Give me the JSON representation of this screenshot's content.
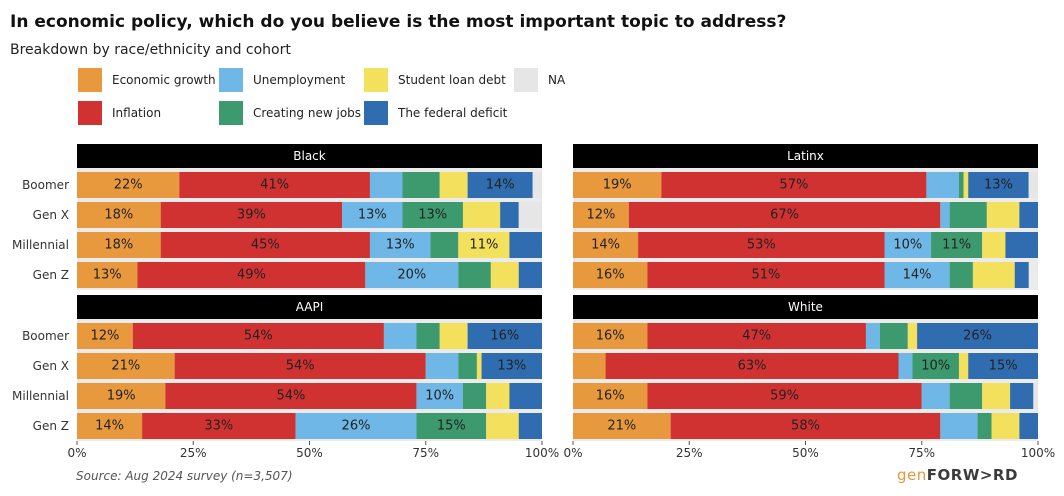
{
  "title": "In economic policy, which do you believe is the most important topic to address?",
  "subtitle": "Breakdown by race/ethnicity and cohort",
  "source": "Source: Aug 2024 survey (n=3,507)",
  "brand": {
    "prefix": "gen",
    "main": "FORW>RD"
  },
  "legend": [
    {
      "key": "econ_growth",
      "label": "Economic growth",
      "color": "#e8993e"
    },
    {
      "key": "unemployment",
      "label": "Unemployment",
      "color": "#6fb7e6"
    },
    {
      "key": "student_loan",
      "label": "Student loan debt",
      "color": "#f3e05c"
    },
    {
      "key": "na",
      "label": "NA",
      "color": "#e6e6e6"
    },
    {
      "key": "inflation",
      "label": "Inflation",
      "color": "#d03232"
    },
    {
      "key": "new_jobs",
      "label": "Creating new jobs",
      "color": "#3d9a6e"
    },
    {
      "key": "deficit",
      "label": "The federal deficit",
      "color": "#2f6db0"
    }
  ],
  "chart_data": {
    "type": "bar",
    "orientation": "horizontal",
    "stacked": true,
    "xlim": [
      0,
      100
    ],
    "x_ticks": [
      "0%",
      "25%",
      "50%",
      "75%",
      "100%"
    ],
    "categories": [
      "Boomer",
      "Gen X",
      "Millennial",
      "Gen Z"
    ],
    "segment_order": [
      "econ_growth",
      "inflation",
      "unemployment",
      "new_jobs",
      "student_loan",
      "deficit",
      "na"
    ],
    "panels": [
      {
        "name": "Black",
        "rows": [
          {
            "cohort": "Boomer",
            "econ_growth": 22,
            "inflation": 41,
            "unemployment": 7,
            "new_jobs": 8,
            "student_loan": 6,
            "deficit": 14,
            "na": 2
          },
          {
            "cohort": "Gen X",
            "econ_growth": 18,
            "inflation": 39,
            "unemployment": 13,
            "new_jobs": 13,
            "student_loan": 8,
            "deficit": 4,
            "na": 5
          },
          {
            "cohort": "Millennial",
            "econ_growth": 18,
            "inflation": 45,
            "unemployment": 13,
            "new_jobs": 6,
            "student_loan": 11,
            "deficit": 7,
            "na": 0
          },
          {
            "cohort": "Gen Z",
            "econ_growth": 13,
            "inflation": 49,
            "unemployment": 20,
            "new_jobs": 7,
            "student_loan": 6,
            "deficit": 5,
            "na": 0
          }
        ]
      },
      {
        "name": "Latinx",
        "rows": [
          {
            "cohort": "Boomer",
            "econ_growth": 19,
            "inflation": 57,
            "unemployment": 7,
            "new_jobs": 1,
            "student_loan": 1,
            "deficit": 13,
            "na": 2
          },
          {
            "cohort": "Gen X",
            "econ_growth": 12,
            "inflation": 67,
            "unemployment": 2,
            "new_jobs": 8,
            "student_loan": 7,
            "deficit": 4,
            "na": 0
          },
          {
            "cohort": "Millennial",
            "econ_growth": 14,
            "inflation": 53,
            "unemployment": 10,
            "new_jobs": 11,
            "student_loan": 5,
            "deficit": 7,
            "na": 0
          },
          {
            "cohort": "Gen Z",
            "econ_growth": 16,
            "inflation": 51,
            "unemployment": 14,
            "new_jobs": 5,
            "student_loan": 9,
            "deficit": 3,
            "na": 0
          }
        ]
      },
      {
        "name": "AAPI",
        "rows": [
          {
            "cohort": "Boomer",
            "econ_growth": 12,
            "inflation": 54,
            "unemployment": 7,
            "new_jobs": 5,
            "student_loan": 6,
            "deficit": 16,
            "na": 0
          },
          {
            "cohort": "Gen X",
            "econ_growth": 21,
            "inflation": 54,
            "unemployment": 7,
            "new_jobs": 4,
            "student_loan": 1,
            "deficit": 13,
            "na": 0
          },
          {
            "cohort": "Millennial",
            "econ_growth": 19,
            "inflation": 54,
            "unemployment": 10,
            "new_jobs": 5,
            "student_loan": 5,
            "deficit": 7,
            "na": 0
          },
          {
            "cohort": "Gen Z",
            "econ_growth": 14,
            "inflation": 33,
            "unemployment": 26,
            "new_jobs": 15,
            "student_loan": 7,
            "deficit": 5,
            "na": 0
          }
        ]
      },
      {
        "name": "White",
        "rows": [
          {
            "cohort": "Boomer",
            "econ_growth": 16,
            "inflation": 47,
            "unemployment": 3,
            "new_jobs": 6,
            "student_loan": 2,
            "deficit": 26,
            "na": 0
          },
          {
            "cohort": "Gen X",
            "econ_growth": 7,
            "inflation": 63,
            "unemployment": 3,
            "new_jobs": 10,
            "student_loan": 2,
            "deficit": 15,
            "na": 0
          },
          {
            "cohort": "Millennial",
            "econ_growth": 16,
            "inflation": 59,
            "unemployment": 6,
            "new_jobs": 7,
            "student_loan": 6,
            "deficit": 5,
            "na": 1
          },
          {
            "cohort": "Gen Z",
            "econ_growth": 21,
            "inflation": 58,
            "unemployment": 8,
            "new_jobs": 3,
            "student_loan": 6,
            "deficit": 4,
            "na": 0
          }
        ]
      }
    ]
  }
}
